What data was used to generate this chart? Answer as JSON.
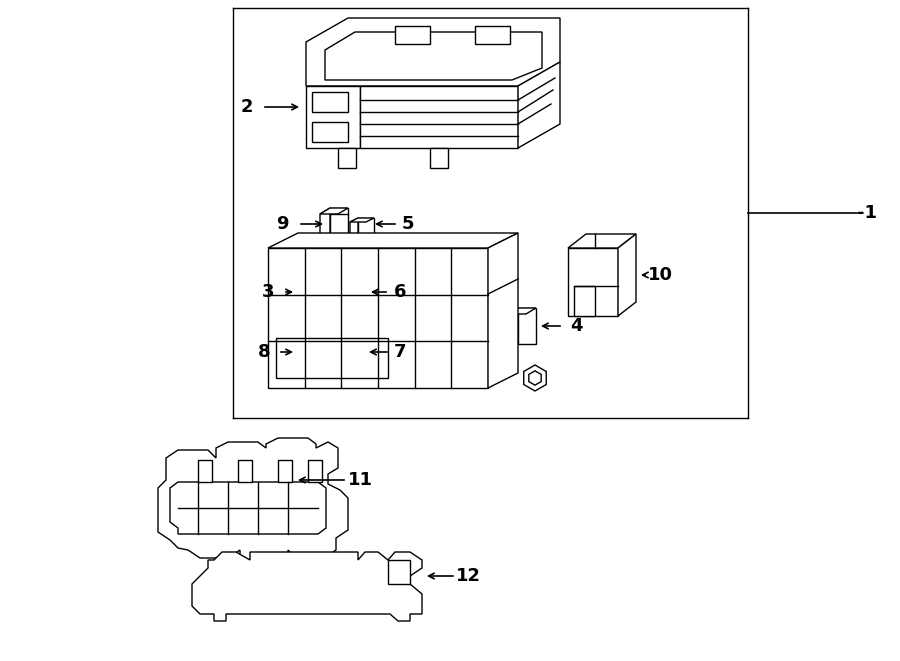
{
  "bg_color": "#ffffff",
  "line_color": "#000000",
  "lw": 1.0,
  "fig_width": 9.0,
  "fig_height": 6.61
}
